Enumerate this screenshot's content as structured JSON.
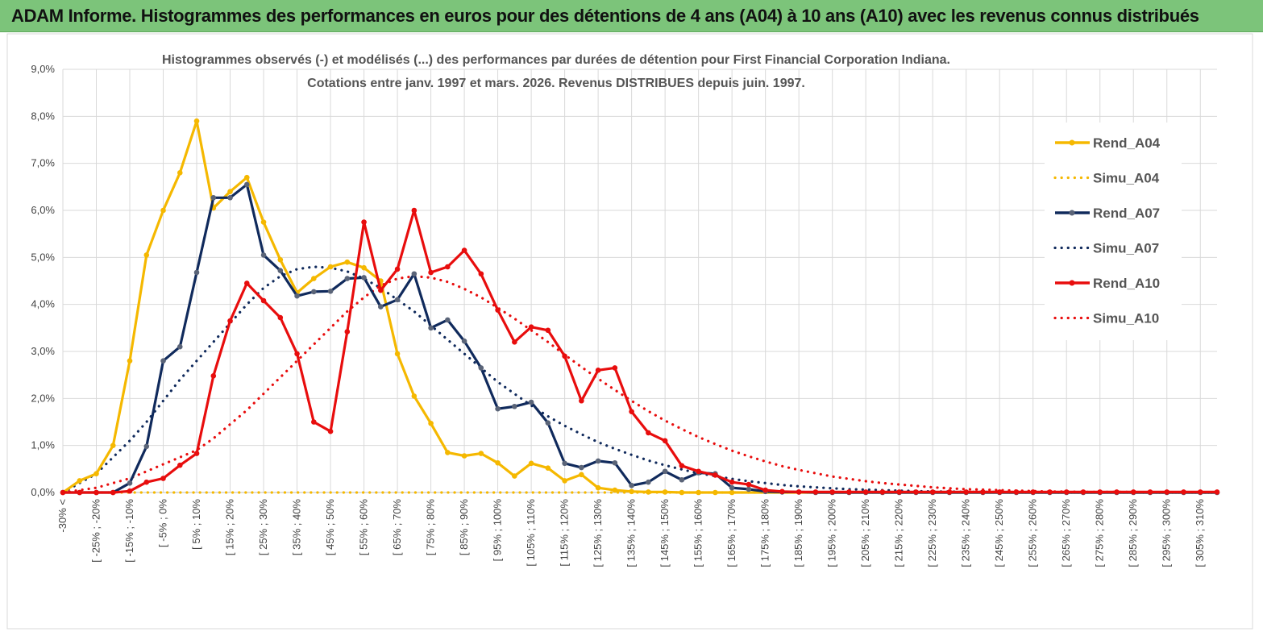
{
  "header": {
    "title": "ADAM Informe. Histogrammes des performances en euros pour des détentions de 4 ans (A04) à 10 ans (A10) avec les revenus connus distribués"
  },
  "chart_data": {
    "type": "line",
    "title_line1": "Histogrammes observés (-) et modélisés (...) des performances par durées de détention pour First Financial Corporation Indiana.",
    "title_line2": "Cotations entre janv. 1997 et mars. 2026. Revenus DISTRIBUES depuis juin. 1997.",
    "ylim": [
      0,
      9
    ],
    "yticks": [
      "0,0%",
      "1,0%",
      "2,0%",
      "3,0%",
      "4,0%",
      "5,0%",
      "6,0%",
      "7,0%",
      "8,0%",
      "9,0%"
    ],
    "x_labels": [
      "-30% <",
      "[ -25% ; -20%",
      "[ -15% ; -10%",
      "[ -5% ; 0%",
      "[ 5% ; 10%",
      "[ 15% ; 20%",
      "[ 25% ; 30%",
      "[ 35% ; 40%",
      "[ 45% ; 50%",
      "[ 55% ; 60%",
      "[ 65% ; 70%",
      "[ 75% ; 80%",
      "[ 85% ; 90%",
      "[ 95% ; 100%",
      "[ 105% ; 110%",
      "[ 115% ; 120%",
      "[ 125% ; 130%",
      "[ 135% ; 140%",
      "[ 145% ; 150%",
      "[ 155% ; 160%",
      "[ 165% ; 170%",
      "[ 175% ; 180%",
      "[ 185% ; 190%",
      "[ 195% ; 200%",
      "[ 205% ; 210%",
      "[ 215% ; 220%",
      "[ 225% ; 230%",
      "[ 235% ; 240%",
      "[ 245% ; 250%",
      "[ 255% ; 260%",
      "[ 265% ; 270%",
      "[ 275% ; 280%",
      "[ 285% ; 290%",
      "[ 295% ; 300%",
      "[ 305% ; 310%"
    ],
    "x_label_index_step": 2,
    "x_count": 70,
    "series": [
      {
        "name": "Rend_A04",
        "style": "solid",
        "color": "#f5b800",
        "values": [
          0.0,
          0.25,
          0.4,
          1.0,
          2.8,
          5.05,
          6.0,
          6.8,
          7.9,
          6.05,
          6.4,
          6.7,
          5.75,
          4.95,
          4.25,
          4.55,
          4.8,
          4.9,
          4.78,
          4.5,
          2.95,
          2.05,
          1.47,
          0.85,
          0.78,
          0.83,
          0.63,
          0.35,
          0.62,
          0.52,
          0.25,
          0.38,
          0.1,
          0.05,
          0.02,
          0.01,
          0.01,
          0.0,
          0.0,
          0.0,
          0.0,
          0.0,
          0.0,
          0.0,
          0.0,
          0.0,
          0.0,
          0.0,
          0.0,
          0.0,
          0.0,
          0.0,
          0.0,
          0.0,
          0.0,
          0.0,
          0.0,
          0.0,
          0.0,
          0.0,
          0.0,
          0.0,
          0.0,
          0.0,
          0.0,
          0.0,
          0.0,
          0.0,
          0.0,
          0.0
        ]
      },
      {
        "name": "Simu_A04",
        "style": "dotted",
        "color": "#f5b800",
        "values": [
          0.0,
          0.0,
          0.0,
          0.0,
          0.0,
          0.0,
          0.0,
          0.0,
          0.0,
          0.0,
          0.0,
          0.0,
          0.0,
          0.0,
          0.0,
          0.0,
          0.0,
          0.0,
          0.0,
          0.0,
          0.0,
          0.0,
          0.0,
          0.0,
          0.0,
          0.0,
          0.0,
          0.0,
          0.0,
          0.0,
          0.0,
          0.0,
          0.0,
          0.0,
          0.0,
          0.0,
          0.0,
          0.0,
          0.0,
          0.0,
          0.0,
          0.0,
          0.0,
          0.0,
          0.0,
          0.0,
          0.0,
          0.0,
          0.0,
          0.0,
          0.0,
          0.0,
          0.0,
          0.0,
          0.0,
          0.0,
          0.0,
          0.0,
          0.0,
          0.0,
          0.0,
          0.0,
          0.0,
          0.0,
          0.0,
          0.0,
          0.0,
          0.0,
          0.0,
          0.0
        ]
      },
      {
        "name": "Rend_A07",
        "style": "solid",
        "color": "#102a5c",
        "values": [
          0.0,
          0.0,
          0.0,
          0.0,
          0.2,
          0.98,
          2.8,
          3.1,
          4.68,
          6.27,
          6.27,
          6.55,
          5.05,
          4.72,
          4.18,
          4.27,
          4.28,
          4.55,
          4.57,
          3.95,
          4.1,
          4.65,
          3.5,
          3.67,
          3.22,
          2.65,
          1.78,
          1.83,
          1.92,
          1.48,
          0.62,
          0.53,
          0.67,
          0.63,
          0.15,
          0.22,
          0.45,
          0.27,
          0.42,
          0.4,
          0.1,
          0.07,
          0.02,
          0.01,
          0.01,
          0.0,
          0.0,
          0.0,
          0.0,
          0.0,
          0.0,
          0.0,
          0.0,
          0.0,
          0.0,
          0.0,
          0.0,
          0.0,
          0.0,
          0.0,
          0.0,
          0.0,
          0.0,
          0.0,
          0.0,
          0.0,
          0.0,
          0.0,
          0.0,
          0.0
        ]
      },
      {
        "name": "Simu_A07",
        "style": "dotted",
        "color": "#102a5c",
        "values": [
          0.0,
          0.2,
          0.4,
          0.75,
          1.1,
          1.5,
          1.95,
          2.4,
          2.8,
          3.2,
          3.6,
          4.0,
          4.35,
          4.6,
          4.75,
          4.8,
          4.78,
          4.7,
          4.55,
          4.35,
          4.1,
          3.85,
          3.55,
          3.25,
          2.95,
          2.65,
          2.35,
          2.1,
          1.85,
          1.62,
          1.42,
          1.24,
          1.07,
          0.93,
          0.8,
          0.68,
          0.58,
          0.49,
          0.41,
          0.35,
          0.29,
          0.24,
          0.2,
          0.16,
          0.13,
          0.11,
          0.09,
          0.07,
          0.06,
          0.05,
          0.04,
          0.03,
          0.02,
          0.02,
          0.01,
          0.01,
          0.01,
          0.0,
          0.0,
          0.0,
          0.0,
          0.0,
          0.0,
          0.0,
          0.0,
          0.0,
          0.0,
          0.0,
          0.0,
          0.0
        ]
      },
      {
        "name": "Rend_A10",
        "style": "solid",
        "color": "#e80d0d",
        "values": [
          0.0,
          0.0,
          0.0,
          0.0,
          0.03,
          0.22,
          0.3,
          0.58,
          0.83,
          2.48,
          3.65,
          4.45,
          4.08,
          3.72,
          2.95,
          1.5,
          1.3,
          3.42,
          5.75,
          4.3,
          4.75,
          6.0,
          4.68,
          4.8,
          5.15,
          4.65,
          3.88,
          3.2,
          3.52,
          3.45,
          2.9,
          1.95,
          2.6,
          2.65,
          1.72,
          1.27,
          1.1,
          0.57,
          0.45,
          0.37,
          0.22,
          0.17,
          0.05,
          0.02,
          0.01,
          0.01,
          0.01,
          0.01,
          0.01,
          0.01,
          0.01,
          0.01,
          0.01,
          0.01,
          0.01,
          0.01,
          0.01,
          0.01,
          0.01,
          0.01,
          0.01,
          0.01,
          0.01,
          0.01,
          0.01,
          0.01,
          0.01,
          0.01,
          0.01,
          0.01
        ]
      },
      {
        "name": "Simu_A10",
        "style": "dotted",
        "color": "#e80d0d",
        "values": [
          0.0,
          0.05,
          0.1,
          0.2,
          0.3,
          0.45,
          0.6,
          0.75,
          0.9,
          1.15,
          1.45,
          1.75,
          2.1,
          2.45,
          2.8,
          3.15,
          3.5,
          3.85,
          4.15,
          4.4,
          4.55,
          4.6,
          4.57,
          4.48,
          4.33,
          4.15,
          3.93,
          3.7,
          3.45,
          3.2,
          2.93,
          2.67,
          2.42,
          2.18,
          1.95,
          1.73,
          1.53,
          1.35,
          1.18,
          1.03,
          0.89,
          0.77,
          0.66,
          0.56,
          0.48,
          0.41,
          0.34,
          0.29,
          0.24,
          0.2,
          0.17,
          0.14,
          0.11,
          0.09,
          0.07,
          0.06,
          0.05,
          0.04,
          0.03,
          0.02,
          0.02,
          0.01,
          0.01,
          0.01,
          0.01,
          0.0,
          0.0,
          0.0,
          0.0,
          0.0
        ]
      }
    ],
    "legend_position": "right"
  }
}
